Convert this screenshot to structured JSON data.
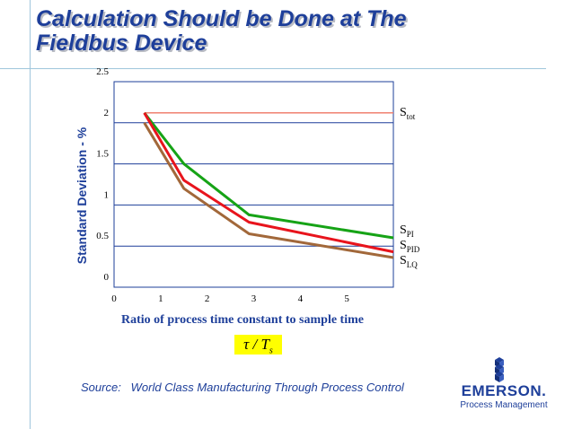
{
  "slide": {
    "title_line1": "Calculation Should be Done at The",
    "title_line2": "Fieldbus Device",
    "source": "Source:   World Class Manufacturing Through Process Control",
    "formula_symbol": "τ / T",
    "formula_subscript": "s"
  },
  "logo": {
    "word": "EMERSON.",
    "tagline": "Process Management"
  },
  "colors": {
    "accent": "#1e3f9a",
    "grid": "#1e3f9a",
    "highlight": "#ffff00"
  },
  "chart_data": {
    "type": "line",
    "title": "",
    "xlabel": "Ratio of process time constant to sample time",
    "ylabel": "Standard Deviation - %",
    "xlim": [
      0,
      6
    ],
    "ylim": [
      0,
      2.5
    ],
    "xticks": [
      "0",
      "1",
      "2",
      "3",
      "4",
      "5"
    ],
    "yticks": [
      "0",
      "0.5",
      "1",
      "1.5",
      "2",
      "2.5"
    ],
    "grid": "horizontal",
    "series": [
      {
        "name": "S_tot",
        "label_main": "S",
        "label_sub": "tot",
        "color": "#f08070",
        "x": [
          0.65,
          6.0
        ],
        "y": [
          2.12,
          2.12
        ]
      },
      {
        "name": "S_PI",
        "label_main": "S",
        "label_sub": "PI",
        "color": "#16a316",
        "x": [
          0.65,
          1.5,
          2.9,
          6.0
        ],
        "y": [
          2.12,
          1.5,
          0.88,
          0.6
        ]
      },
      {
        "name": "S_PID",
        "label_main": "S",
        "label_sub": "PID",
        "color": "#e8141c",
        "x": [
          0.65,
          1.5,
          2.9,
          6.0
        ],
        "y": [
          2.12,
          1.3,
          0.79,
          0.43
        ]
      },
      {
        "name": "S_LQ",
        "label_main": "S",
        "label_sub": "LQ",
        "color": "#a2683a",
        "x": [
          0.65,
          1.5,
          2.9,
          6.0
        ],
        "y": [
          2.0,
          1.2,
          0.65,
          0.36
        ]
      }
    ]
  }
}
